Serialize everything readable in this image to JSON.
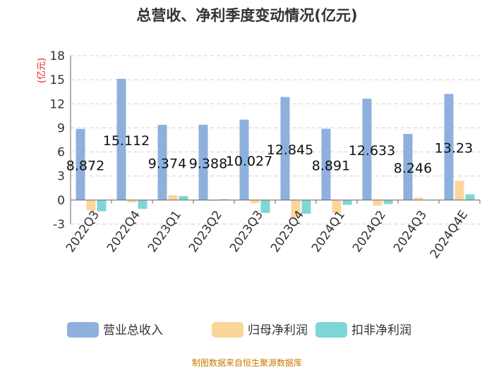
{
  "chart_data": {
    "type": "bar",
    "title": "总营收、净利季度变动情况(亿元)",
    "ylabel": "(亿元)",
    "ylim": [
      -3,
      18
    ],
    "yticks": [
      -3,
      0,
      3,
      6,
      9,
      12,
      15,
      18
    ],
    "grid": true,
    "legend_position": "bottom",
    "categories": [
      "2022Q3",
      "2022Q4",
      "2023Q1",
      "2023Q2",
      "2023Q3",
      "2023Q4",
      "2024Q1",
      "2024Q2",
      "2024Q3",
      "2024Q4E"
    ],
    "series": [
      {
        "name": "营业总收入",
        "color": "#8eb0dd",
        "values": [
          8.872,
          15.112,
          9.374,
          9.388,
          10.027,
          12.845,
          8.891,
          12.633,
          8.246,
          13.23
        ],
        "labels": [
          "8.872",
          "15.112",
          "9.374",
          "9.388",
          "10.027",
          "12.845",
          "8.891",
          "12.633",
          "8.246",
          "13.23"
        ]
      },
      {
        "name": "归母净利润",
        "color": "#fcd59b",
        "values": [
          -1.3,
          -0.3,
          0.6,
          -0.1,
          -0.4,
          -2.2,
          -1.6,
          -0.7,
          0.3,
          2.4
        ]
      },
      {
        "name": "扣非净利润",
        "color": "#7fd6d6",
        "values": [
          -1.4,
          -1.1,
          0.5,
          0.1,
          -1.6,
          -1.7,
          -0.6,
          -0.5,
          0.0,
          0.7
        ]
      }
    ],
    "source": "制图数据来自恒生聚源数据库"
  }
}
